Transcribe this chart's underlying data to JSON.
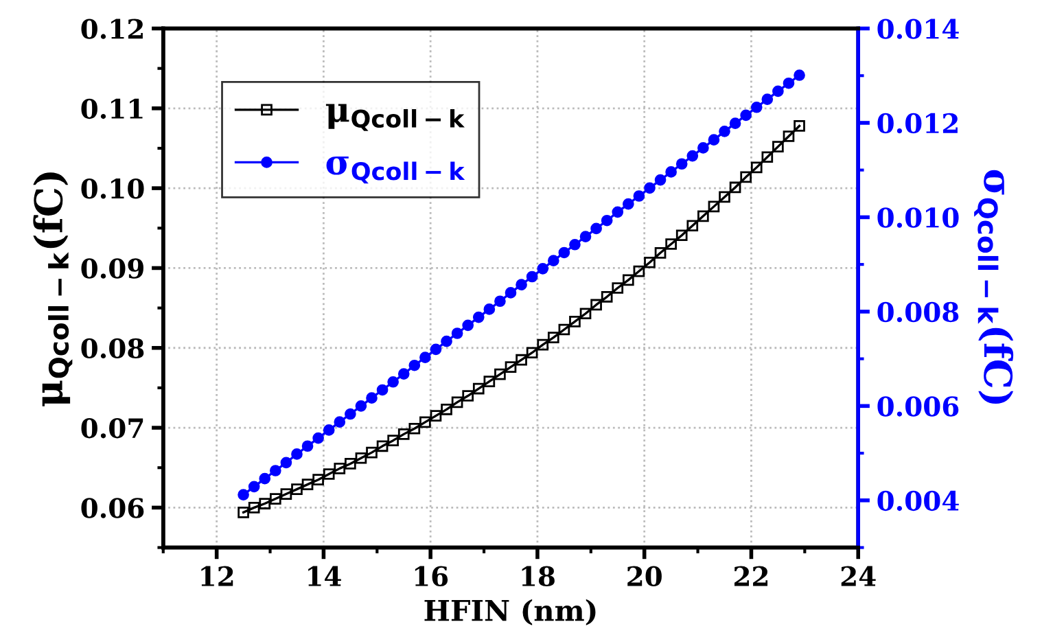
{
  "chart_data": {
    "type": "line",
    "xlabel": "HFIN (nm)",
    "ylabel": "μ$_{Qcoll−k}$(fC)",
    "y2label": "σ$_{Qcoll−k}$(fC)",
    "x": [
      12.5,
      12.7,
      12.9,
      13.1,
      13.3,
      13.5,
      13.7,
      13.9,
      14.1,
      14.3,
      14.5,
      14.7,
      14.9,
      15.1,
      15.3,
      15.5,
      15.7,
      15.9,
      16.1,
      16.3,
      16.5,
      16.7,
      16.9,
      17.1,
      17.3,
      17.5,
      17.7,
      17.9,
      18.1,
      18.3,
      18.5,
      18.7,
      18.9,
      19.1,
      19.3,
      19.5,
      19.7,
      19.9,
      20.1,
      20.3,
      20.5,
      20.7,
      20.9,
      21.1,
      21.3,
      21.5,
      21.7,
      21.9,
      22.1,
      22.3,
      22.5,
      22.7,
      22.9
    ],
    "series": [
      {
        "name": "μ$_{Qcoll−k}$",
        "color": "#000000",
        "marker": "square",
        "values": [
          0.0594,
          0.06,
          0.0605,
          0.0611,
          0.0617,
          0.0623,
          0.0629,
          0.0635,
          0.0642,
          0.0649,
          0.0655,
          0.0662,
          0.0669,
          0.0677,
          0.0684,
          0.0692,
          0.0699,
          0.0707,
          0.0715,
          0.0723,
          0.0732,
          0.074,
          0.0749,
          0.0758,
          0.0767,
          0.0776,
          0.0785,
          0.0794,
          0.0804,
          0.0813,
          0.0823,
          0.0833,
          0.0843,
          0.0854,
          0.0864,
          0.0875,
          0.0885,
          0.0896,
          0.0907,
          0.0919,
          0.093,
          0.0941,
          0.0953,
          0.0965,
          0.0977,
          0.0989,
          0.1001,
          0.1014,
          0.1026,
          0.1039,
          0.1052,
          0.1065,
          0.1078
        ]
      },
      {
        "name": "σ$_{Qcoll−k}$",
        "color": "#0000ff",
        "marker": "circle",
        "axis": "y2",
        "values": [
          0.00412,
          0.00429,
          0.00446,
          0.00463,
          0.0048,
          0.00498,
          0.00515,
          0.00532,
          0.00549,
          0.00566,
          0.00583,
          0.006,
          0.00617,
          0.00634,
          0.00651,
          0.00668,
          0.00686,
          0.00703,
          0.0072,
          0.00737,
          0.00754,
          0.00771,
          0.00788,
          0.00805,
          0.00822,
          0.0084,
          0.00857,
          0.00874,
          0.00891,
          0.00908,
          0.00925,
          0.00942,
          0.00959,
          0.00976,
          0.00993,
          0.01011,
          0.01028,
          0.01045,
          0.01062,
          0.01079,
          0.01096,
          0.01113,
          0.0113,
          0.01147,
          0.01164,
          0.01182,
          0.01199,
          0.01216,
          0.01233,
          0.0125,
          0.01267,
          0.01284,
          0.01301
        ]
      }
    ],
    "xlim": [
      11,
      24
    ],
    "xticks": [
      12,
      14,
      16,
      18,
      20,
      22,
      24
    ],
    "ylim": [
      0.055,
      0.12
    ],
    "yticks": [
      {
        "value": 0.06,
        "label": "0.06"
      },
      {
        "value": 0.07,
        "label": "0.07"
      },
      {
        "value": 0.08,
        "label": "0.08"
      },
      {
        "value": 0.09,
        "label": "0.09"
      },
      {
        "value": 0.1,
        "label": "0.10"
      },
      {
        "value": 0.11,
        "label": "0.11"
      },
      {
        "value": 0.12,
        "label": "0.12"
      }
    ],
    "y2lim": [
      0.003,
      0.014
    ],
    "y2ticks": [
      {
        "value": 0.004,
        "label": "0.004"
      },
      {
        "value": 0.006,
        "label": "0.006"
      },
      {
        "value": 0.008,
        "label": "0.008"
      },
      {
        "value": 0.01,
        "label": "0.010"
      },
      {
        "value": 0.012,
        "label": "0.012"
      },
      {
        "value": 0.014,
        "label": "0.014"
      }
    ],
    "grid": true,
    "legend": "top left",
    "line_style": "solid"
  }
}
